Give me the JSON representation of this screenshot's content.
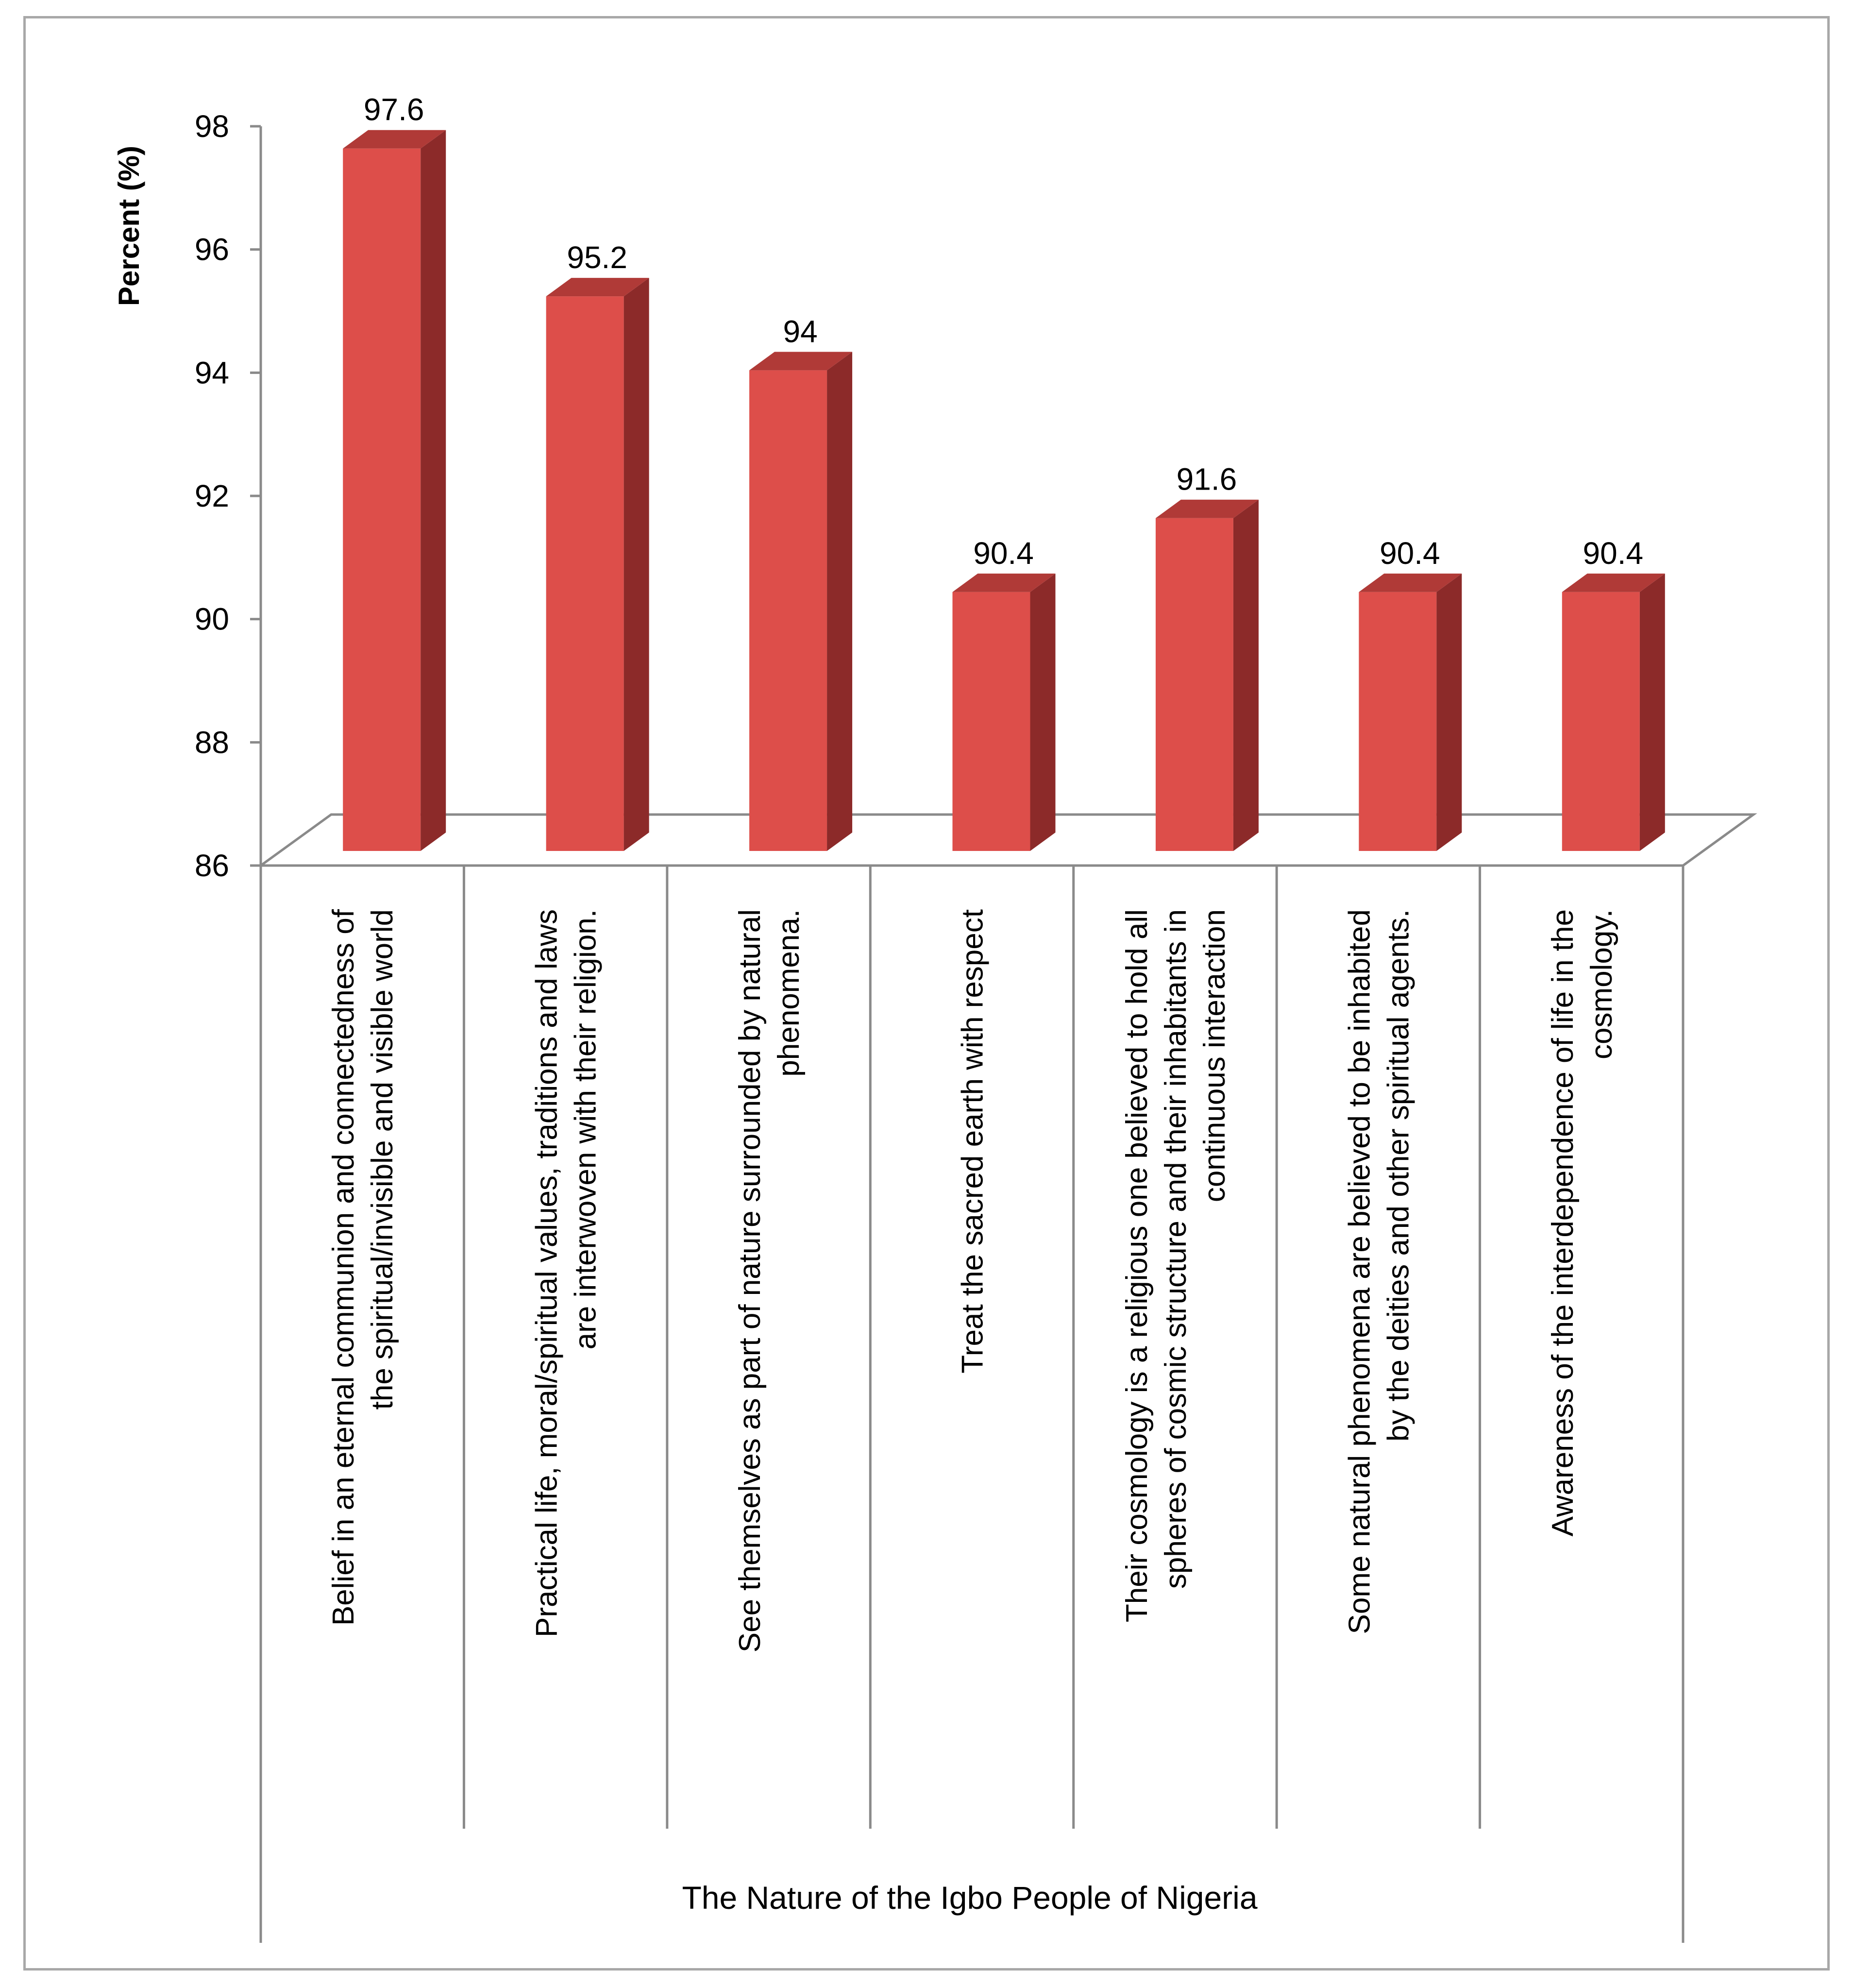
{
  "chart_data": {
    "type": "bar",
    "xlabel": "The Nature of the Igbo People of Nigeria",
    "ylabel": "Percent (%)",
    "ylim": [
      86,
      98
    ],
    "yticks": [
      98,
      96,
      94,
      92,
      90,
      88,
      86
    ],
    "grid": false,
    "legend": "none",
    "three_d": true,
    "categories": [
      "Belief in an eternal communion and connectedness of the spiritual/invisible and visible world",
      "Practical life, moral/spiritual values, traditions and laws are interwoven with their religion.",
      "See themselves as part of nature surrounded by natural phenomena.",
      "Treat the sacred earth with respect",
      "Their cosmology is a religious one believed to hold all spheres of cosmic structure and their inhabitants in continuous interaction",
      "Some natural phenomena are believed to be inhabited by the deities and other spiritual agents.",
      "Awareness of the interdependence of life in the cosmology."
    ],
    "category_label_lines": [
      [
        "Belief in an eternal communion and connectedness of",
        "the spiritual/invisible and visible world"
      ],
      [
        "Practical life, moral/spiritual values, traditions and laws",
        "are interwoven with their religion."
      ],
      [
        "See themselves as part of nature surrounded by natural",
        "phenomena."
      ],
      [
        "Treat the sacred earth with respect"
      ],
      [
        "Their cosmology is a religious one believed to hold all",
        "spheres of cosmic structure and their inhabitants in",
        "continuous interaction"
      ],
      [
        "Some natural phenomena are believed to be inhabited",
        "by the deities and other spiritual agents."
      ],
      [
        "Awareness of the interdependence of life in the",
        "cosmology."
      ]
    ],
    "values": [
      97.6,
      95.2,
      94,
      90.4,
      91.6,
      90.4,
      90.4
    ],
    "data_labels": [
      "97.6",
      "95.2",
      "94",
      "90.4",
      "91.6",
      "90.4",
      "90.4"
    ],
    "colors": {
      "bar_front": "#dd4e4a",
      "bar_side": "#8c2a29",
      "bar_top": "#b03a37",
      "axis": "#8a8a8a"
    }
  }
}
